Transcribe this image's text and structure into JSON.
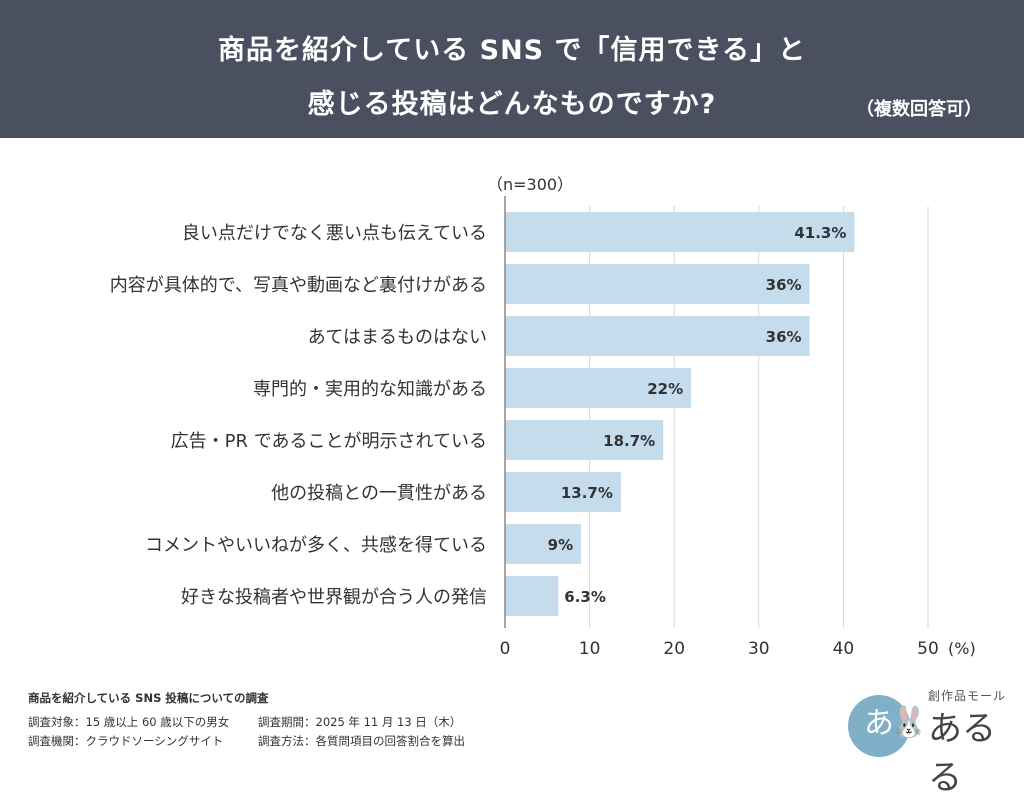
{
  "header": {
    "title_line1": "商品を紹介している SNS で「信用できる」と",
    "title_line2": "感じる投稿はどんなものですか?",
    "note": "（複数回答可）"
  },
  "chart_data": {
    "type": "bar",
    "orientation": "horizontal",
    "sample_size": "（n=300）",
    "categories": [
      "良い点だけでなく悪い点も伝えている",
      "内容が具体的で、写真や動画など裏付けがある",
      "あてはまるものはない",
      "専門的・実用的な知識がある",
      "広告・PR であることが明示されている",
      "他の投稿との一貫性がある",
      "コメントやいいねが多く、共感を得ている",
      "好きな投稿者や世界観が合う人の発信"
    ],
    "values": [
      41.3,
      36,
      36,
      22,
      18.7,
      13.7,
      9,
      6.3
    ],
    "value_labels": [
      "41.3%",
      "36%",
      "36%",
      "22%",
      "18.7%",
      "13.7%",
      "9%",
      "6.3%"
    ],
    "xlim": [
      0,
      50
    ],
    "x_ticks": [
      0,
      10,
      20,
      30,
      40,
      50
    ],
    "x_unit": "(%)",
    "grid": true,
    "colors": {
      "bar": "#c5dcec",
      "grid": "#d8d8d8",
      "axis": "#888888",
      "text": "#333333"
    }
  },
  "footer": {
    "survey_title": "商品を紹介している SNS 投稿についての調査",
    "target": "調査対象：15 歳以上 60 歳以下の男女",
    "period": "調査期間：2025 年 11 月 13 日（木）",
    "agency": "調査機関：クラウドソーシングサイト",
    "method": "調査方法：各質問項目の回答割合を算出"
  },
  "logo": {
    "mark": "あ",
    "small_text": "創作品モール",
    "big_text": "あるる"
  },
  "colors": {
    "header_bg": "#4a5060",
    "header_text": "#ffffff",
    "logo_circle": "#7fb0c7"
  }
}
